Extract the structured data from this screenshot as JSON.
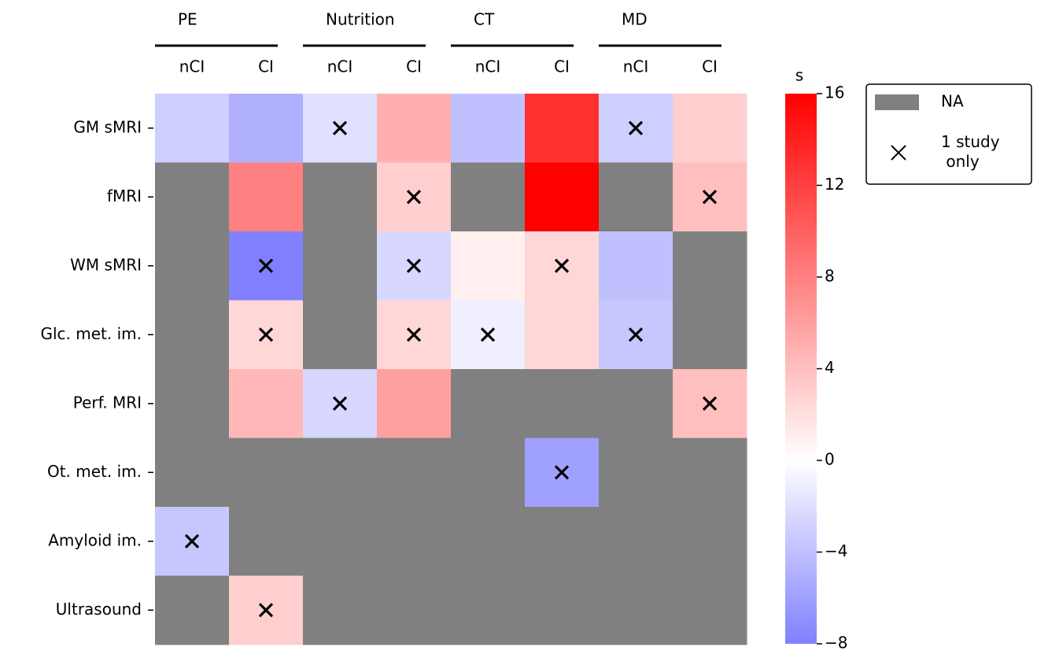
{
  "chart_data": {
    "type": "heatmap",
    "groups": [
      {
        "label": "PE",
        "columns": [
          "nCI",
          "CI"
        ]
      },
      {
        "label": "Nutrition",
        "columns": [
          "nCI",
          "CI"
        ]
      },
      {
        "label": "CT",
        "columns": [
          "nCI",
          "CI"
        ]
      },
      {
        "label": "MD",
        "columns": [
          "nCI",
          "CI"
        ]
      }
    ],
    "rows": [
      "GM sMRI",
      "fMRI",
      "WM sMRI",
      "Glc. met. im.",
      "Perf. MRI",
      "Ot. met. im.",
      "Amyloid im.",
      "Ultrasound"
    ],
    "values": [
      [
        -3,
        -5,
        -2,
        5,
        -4,
        13,
        -3,
        3
      ],
      [
        null,
        8,
        null,
        3,
        null,
        16,
        null,
        4
      ],
      [
        null,
        -8,
        null,
        -2.5,
        1,
        2.5,
        -4,
        null
      ],
      [
        null,
        2.5,
        null,
        2.5,
        -1,
        2.5,
        -3.5,
        null
      ],
      [
        null,
        4.5,
        -2.5,
        6,
        null,
        null,
        null,
        4
      ],
      [
        null,
        null,
        null,
        null,
        null,
        -6,
        null,
        null
      ],
      [
        -3.5,
        null,
        null,
        null,
        null,
        null,
        null,
        null
      ],
      [
        null,
        3,
        null,
        null,
        null,
        null,
        null,
        null
      ]
    ],
    "one_study_only": [
      [
        false,
        false,
        true,
        false,
        false,
        false,
        true,
        false
      ],
      [
        false,
        false,
        false,
        true,
        false,
        false,
        false,
        true
      ],
      [
        false,
        true,
        false,
        true,
        false,
        true,
        false,
        false
      ],
      [
        false,
        true,
        false,
        true,
        true,
        false,
        true,
        false
      ],
      [
        false,
        false,
        true,
        false,
        false,
        false,
        false,
        true
      ],
      [
        false,
        false,
        false,
        false,
        false,
        true,
        false,
        false
      ],
      [
        true,
        false,
        false,
        false,
        false,
        false,
        false,
        false
      ],
      [
        false,
        true,
        false,
        false,
        false,
        false,
        false,
        false
      ]
    ],
    "colorbar": {
      "label": "s",
      "vmin": -8,
      "vmax": 16,
      "center": 0,
      "ticks": [
        -8,
        -4,
        0,
        4,
        8,
        12,
        16
      ],
      "colormap": "bwr",
      "na_color": "#808080"
    },
    "legend": {
      "position": "top-right",
      "entries": [
        {
          "label": "NA",
          "marker": "gray-patch"
        },
        {
          "label": "1 study\n only",
          "marker": "cross"
        }
      ]
    }
  }
}
